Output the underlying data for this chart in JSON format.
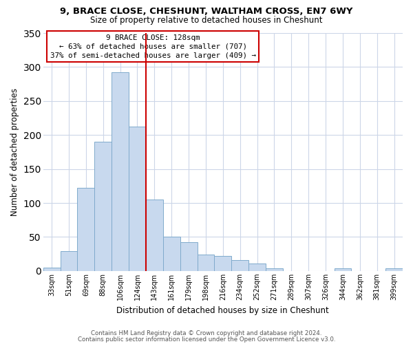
{
  "title_line1": "9, BRACE CLOSE, CHESHUNT, WALTHAM CROSS, EN7 6WY",
  "title_line2": "Size of property relative to detached houses in Cheshunt",
  "xlabel": "Distribution of detached houses by size in Cheshunt",
  "ylabel": "Number of detached properties",
  "footer_line1": "Contains HM Land Registry data © Crown copyright and database right 2024.",
  "footer_line2": "Contains public sector information licensed under the Open Government Licence v3.0.",
  "bar_labels": [
    "33sqm",
    "51sqm",
    "69sqm",
    "88sqm",
    "106sqm",
    "124sqm",
    "143sqm",
    "161sqm",
    "179sqm",
    "198sqm",
    "216sqm",
    "234sqm",
    "252sqm",
    "271sqm",
    "289sqm",
    "307sqm",
    "326sqm",
    "344sqm",
    "362sqm",
    "381sqm",
    "399sqm"
  ],
  "bar_values": [
    5,
    29,
    122,
    190,
    292,
    212,
    105,
    50,
    42,
    24,
    22,
    16,
    11,
    4,
    0,
    0,
    0,
    4,
    0,
    0,
    4
  ],
  "bar_color": "#c8d9ee",
  "bar_edge_color": "#7faacc",
  "vline_x": 5.5,
  "vline_color": "#cc0000",
  "annotation_title": "9 BRACE CLOSE: 128sqm",
  "annotation_line2": "← 63% of detached houses are smaller (707)",
  "annotation_line3": "37% of semi-detached houses are larger (409) →",
  "annotation_box_color": "#ffffff",
  "annotation_box_edge": "#cc0000",
  "ylim": [
    0,
    350
  ],
  "yticks": [
    0,
    50,
    100,
    150,
    200,
    250,
    300,
    350
  ],
  "background_color": "#ffffff",
  "grid_color": "#ccd6e8"
}
